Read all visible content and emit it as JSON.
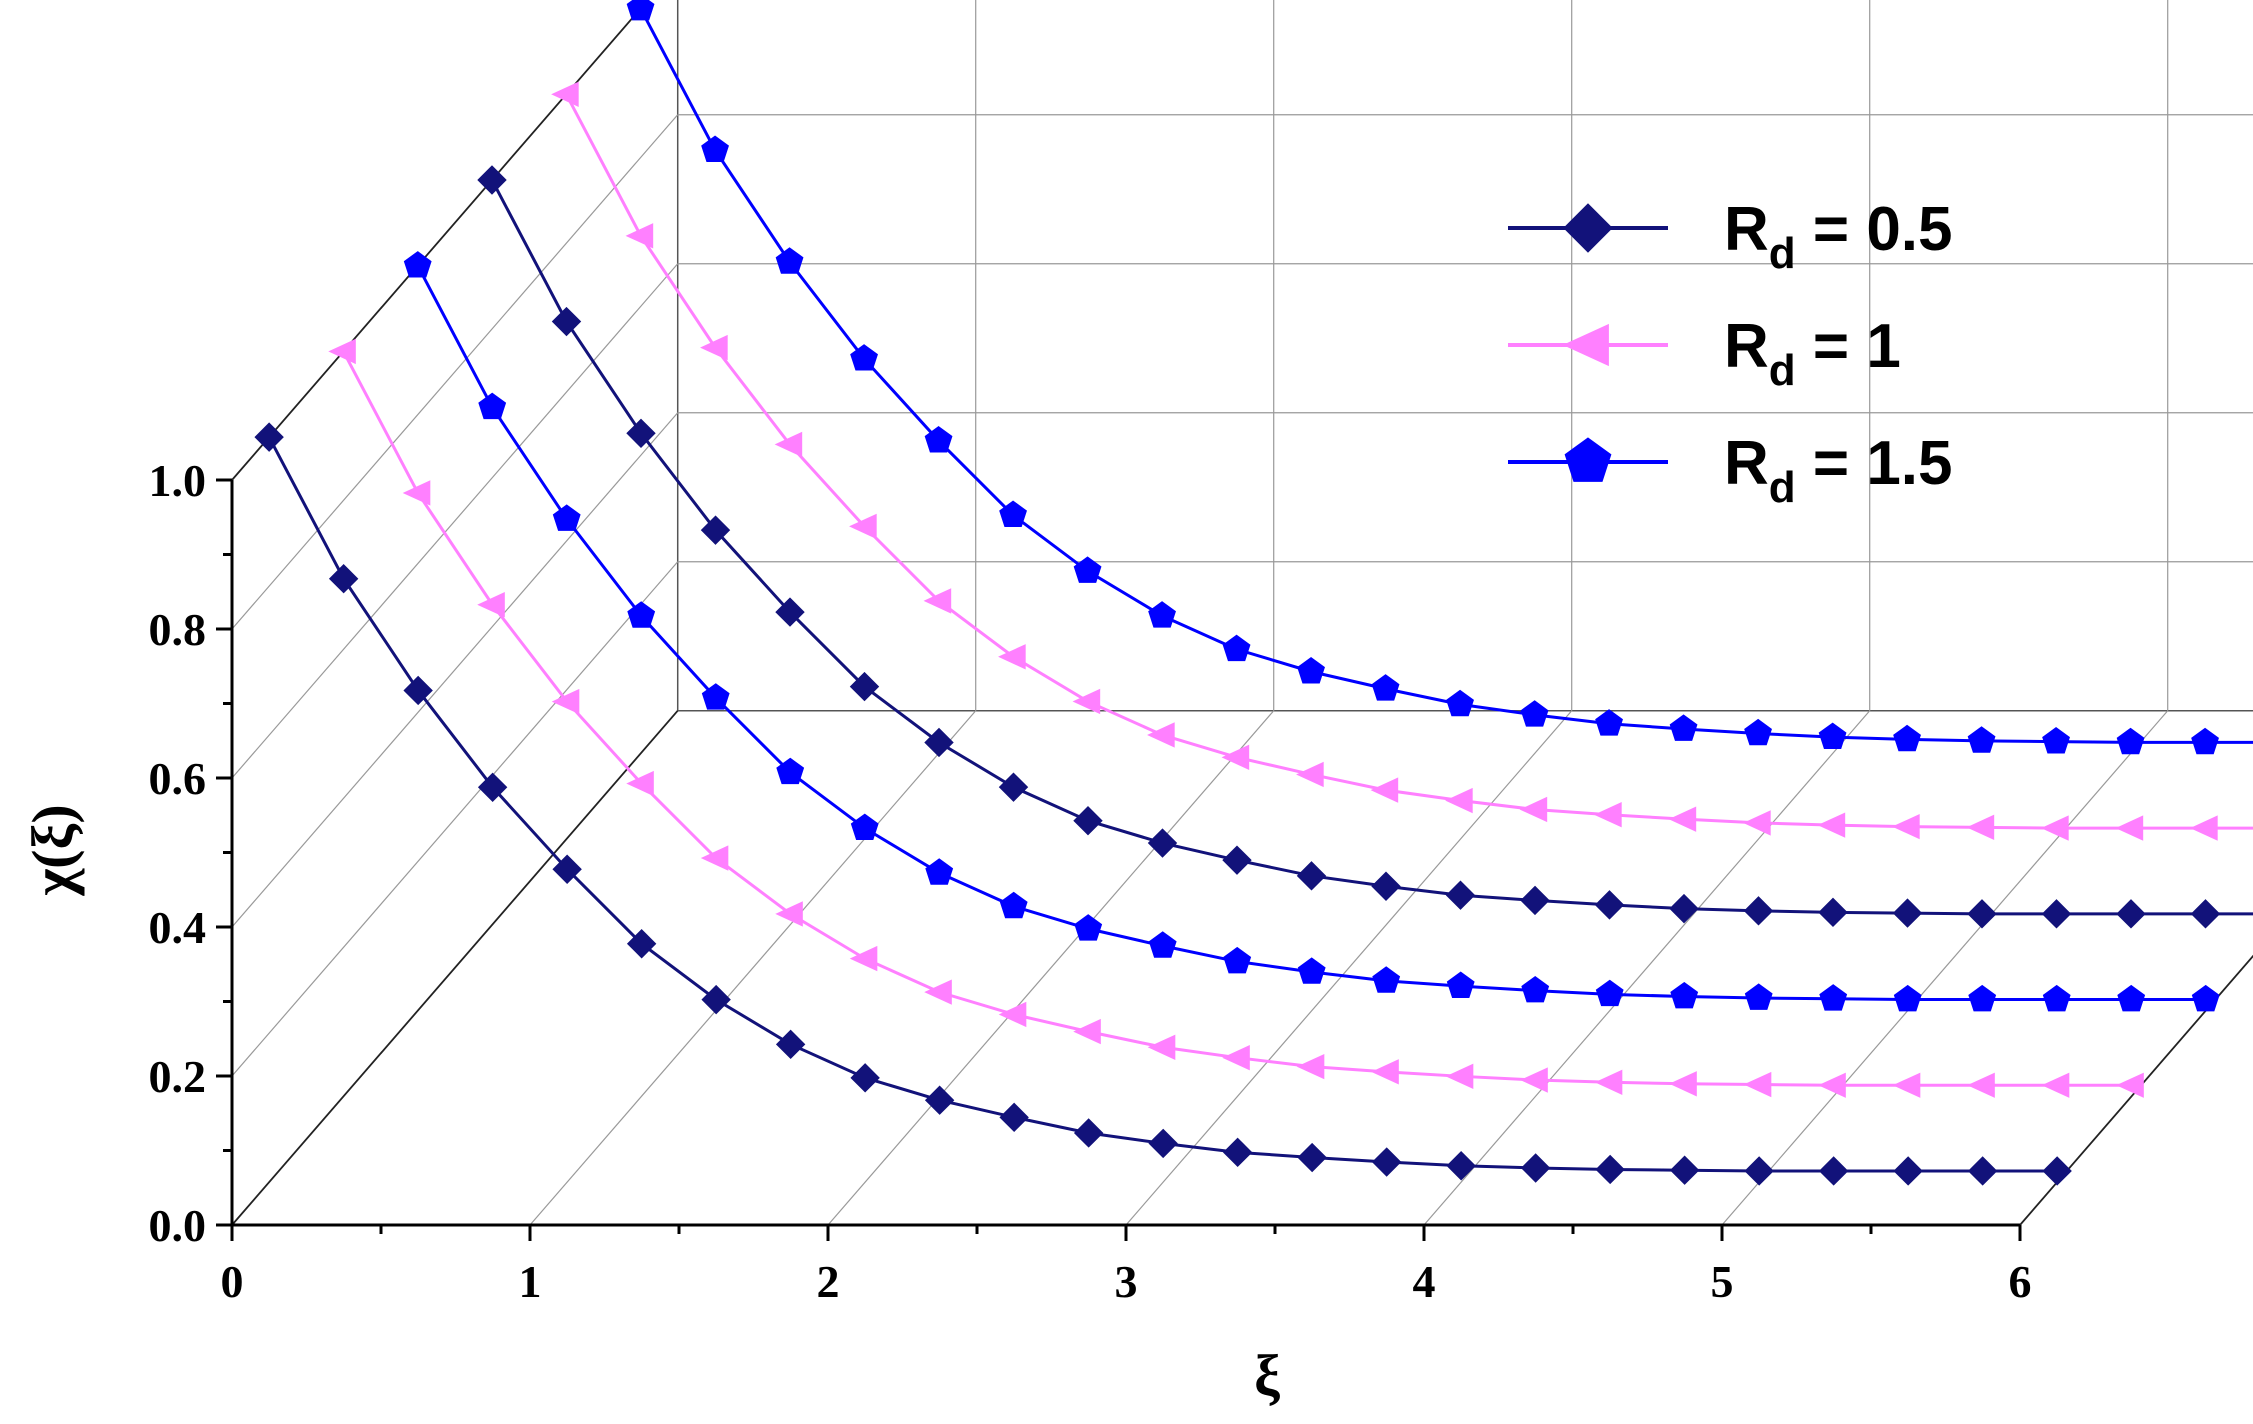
{
  "chart_data": {
    "type": "line",
    "subtype": "3d-waterfall",
    "xlabel": "ξ",
    "ylabel": "χ(ξ)",
    "x_ticks": [
      "0",
      "1",
      "2",
      "3",
      "4",
      "5",
      "6"
    ],
    "y_ticks": [
      "0.0",
      "0.2",
      "0.4",
      "0.6",
      "0.8",
      "1.0"
    ],
    "xlim": [
      0,
      6
    ],
    "ylim": [
      0,
      1
    ],
    "grid": true,
    "legend_position": "top-right",
    "x": [
      0,
      0.25,
      0.5,
      0.75,
      1.0,
      1.25,
      1.5,
      1.75,
      2.0,
      2.25,
      2.5,
      2.75,
      3.0,
      3.25,
      3.5,
      3.75,
      4.0,
      4.25,
      4.5,
      4.75,
      5.0,
      5.25,
      5.5,
      5.75,
      6.0
    ],
    "series": [
      {
        "name": "R_d = 0.5",
        "label_main": "R",
        "label_sub": "d",
        "label_rest": " = 0.5",
        "color": "#12127a",
        "marker": "diamond",
        "depth": 0,
        "values": [
          1.0,
          0.81,
          0.66,
          0.53,
          0.42,
          0.32,
          0.245,
          0.185,
          0.14,
          0.11,
          0.087,
          0.066,
          0.052,
          0.04,
          0.033,
          0.027,
          0.022,
          0.019,
          0.017,
          0.016,
          0.015,
          0.015,
          0.015,
          0.015,
          0.015
        ]
      },
      {
        "name": "R_d = 1",
        "label_main": "R",
        "label_sub": "d",
        "label_rest": " = 1",
        "color": "#ff80ff",
        "marker": "triangle-left",
        "depth": 1,
        "values": [
          1.0,
          0.81,
          0.66,
          0.53,
          0.42,
          0.32,
          0.245,
          0.185,
          0.14,
          0.11,
          0.087,
          0.066,
          0.052,
          0.04,
          0.033,
          0.027,
          0.022,
          0.019,
          0.017,
          0.016,
          0.015,
          0.015,
          0.015,
          0.015,
          0.015
        ]
      },
      {
        "name": "R_d = 1.5",
        "label_main": "R",
        "label_sub": "d",
        "label_rest": " = 1.5",
        "color": "#0000ff",
        "marker": "pentagon",
        "depth": 2,
        "values": [
          1.0,
          0.81,
          0.66,
          0.53,
          0.42,
          0.32,
          0.245,
          0.185,
          0.14,
          0.11,
          0.087,
          0.066,
          0.052,
          0.04,
          0.033,
          0.027,
          0.022,
          0.019,
          0.017,
          0.016,
          0.015,
          0.015,
          0.015,
          0.015,
          0.015
        ]
      },
      {
        "name": "R_d = 0.5",
        "label_main": "",
        "color": "#12127a",
        "marker": "diamond",
        "depth": 3,
        "values": [
          1.0,
          0.81,
          0.66,
          0.53,
          0.42,
          0.32,
          0.245,
          0.185,
          0.14,
          0.11,
          0.087,
          0.066,
          0.052,
          0.04,
          0.033,
          0.027,
          0.022,
          0.019,
          0.017,
          0.016,
          0.015,
          0.015,
          0.015,
          0.015,
          0.015
        ]
      },
      {
        "name": "R_d = 1",
        "label_main": "",
        "color": "#ff80ff",
        "marker": "triangle-left",
        "depth": 4,
        "values": [
          1.0,
          0.81,
          0.66,
          0.53,
          0.42,
          0.32,
          0.245,
          0.185,
          0.14,
          0.11,
          0.087,
          0.066,
          0.052,
          0.04,
          0.033,
          0.027,
          0.022,
          0.019,
          0.017,
          0.016,
          0.015,
          0.015,
          0.015,
          0.015,
          0.015
        ]
      },
      {
        "name": "R_d = 1.5",
        "label_main": "",
        "color": "#0000ff",
        "marker": "pentagon",
        "depth": 5,
        "values": [
          1.0,
          0.81,
          0.66,
          0.53,
          0.42,
          0.32,
          0.245,
          0.185,
          0.14,
          0.11,
          0.087,
          0.066,
          0.052,
          0.04,
          0.033,
          0.027,
          0.022,
          0.019,
          0.017,
          0.016,
          0.015,
          0.015,
          0.015,
          0.015,
          0.015
        ]
      }
    ],
    "legend": [
      {
        "label_main": "R",
        "label_sub": "d",
        "label_rest": " = 0.5",
        "color": "#12127a",
        "marker": "diamond"
      },
      {
        "label_main": "R",
        "label_sub": "d",
        "label_rest": " = 1",
        "color": "#ff80ff",
        "marker": "triangle-left"
      },
      {
        "label_main": "R",
        "label_sub": "d",
        "label_rest": " = 1.5",
        "color": "#0000ff",
        "marker": "pentagon"
      }
    ]
  }
}
